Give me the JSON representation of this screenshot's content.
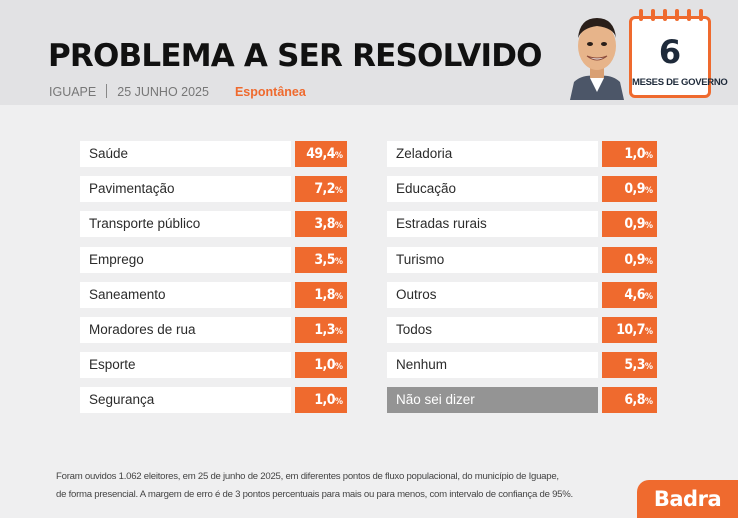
{
  "header": {
    "title": "PROBLEMA A SER RESOLVIDO",
    "city": "IGUAPE",
    "date": "25 JUNHO 2025",
    "survey_type": "Espontânea"
  },
  "calendar": {
    "number": "6",
    "label": "MESES DE GOVERNO"
  },
  "chart_data": {
    "type": "table",
    "title": "PROBLEMA A SER RESOLVIDO",
    "unit": "%",
    "columns": [
      {
        "rows": [
          {
            "label": "Saúde",
            "value": 49.4,
            "display": "49,4"
          },
          {
            "label": "Pavimentação",
            "value": 7.2,
            "display": "7,2"
          },
          {
            "label": "Transporte público",
            "value": 3.8,
            "display": "3,8"
          },
          {
            "label": "Emprego",
            "value": 3.5,
            "display": "3,5"
          },
          {
            "label": "Saneamento",
            "value": 1.8,
            "display": "1,8"
          },
          {
            "label": "Moradores de rua",
            "value": 1.3,
            "display": "1,3"
          },
          {
            "label": "Esporte",
            "value": 1.0,
            "display": "1,0"
          },
          {
            "label": "Segurança",
            "value": 1.0,
            "display": "1,0"
          }
        ]
      },
      {
        "rows": [
          {
            "label": "Zeladoria",
            "value": 1.0,
            "display": "1,0"
          },
          {
            "label": "Educação",
            "value": 0.9,
            "display": "0,9"
          },
          {
            "label": "Estradas rurais",
            "value": 0.9,
            "display": "0,9"
          },
          {
            "label": "Turismo",
            "value": 0.9,
            "display": "0,9"
          },
          {
            "label": "Outros",
            "value": 4.6,
            "display": "4,6"
          },
          {
            "label": "Todos",
            "value": 10.7,
            "display": "10,7"
          },
          {
            "label": "Nenhum",
            "value": 5.3,
            "display": "5,3"
          },
          {
            "label": "Não sei dizer",
            "value": 6.8,
            "display": "6,8",
            "muted": true
          }
        ]
      }
    ]
  },
  "footnote": {
    "line1": "Foram ouvidos 1.062 eleitores, em 25 de junho de 2025, em diferentes pontos de fluxo populacional, do município de Iguape,",
    "line2": "de forma presencial. A margem de erro é de 3 pontos percentuais para mais ou para menos, com intervalo de confiança de 95%."
  },
  "brand": {
    "name": "Badra"
  },
  "colors": {
    "accent": "#ef6a2e",
    "muted": "#949494",
    "background": "#efeff0",
    "header_bg": "#e2e2e4"
  }
}
